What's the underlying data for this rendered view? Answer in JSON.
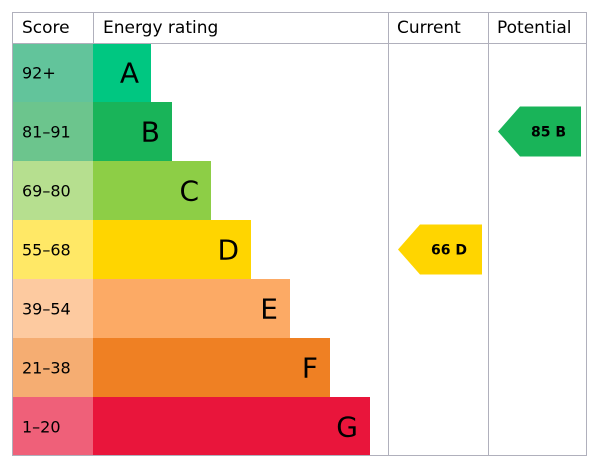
{
  "chart_data": {
    "type": "bar",
    "headers": {
      "score": "Score",
      "rating": "Energy rating",
      "current": "Current",
      "potential": "Potential"
    },
    "bands": [
      {
        "score": "92+",
        "letter": "A",
        "color": "#00c781",
        "band_color_score": "#62c49b"
      },
      {
        "score": "81-91",
        "letter": "B",
        "color": "#19b459",
        "band_color_score": "#6cc58d"
      },
      {
        "score": "69-80",
        "letter": "C",
        "color": "#8dce46",
        "band_color_score": "#b6df8f"
      },
      {
        "score": "55-68",
        "letter": "D",
        "color": "#ffd500",
        "band_color_score": "#ffe866"
      },
      {
        "score": "39-54",
        "letter": "E",
        "color": "#fcaa65",
        "band_color_score": "#fdcaa0"
      },
      {
        "score": "21-38",
        "letter": "F",
        "color": "#ef8023",
        "band_color_score": "#f5ad72"
      },
      {
        "score": "1-20",
        "letter": "G",
        "color": "#e9153b",
        "band_color_score": "#ef6079"
      }
    ],
    "current": {
      "value": 66,
      "band": "D",
      "label": "66 D",
      "color": "#ffd500"
    },
    "potential": {
      "value": 85,
      "band": "B",
      "label": "85 B",
      "color": "#19b459"
    }
  }
}
